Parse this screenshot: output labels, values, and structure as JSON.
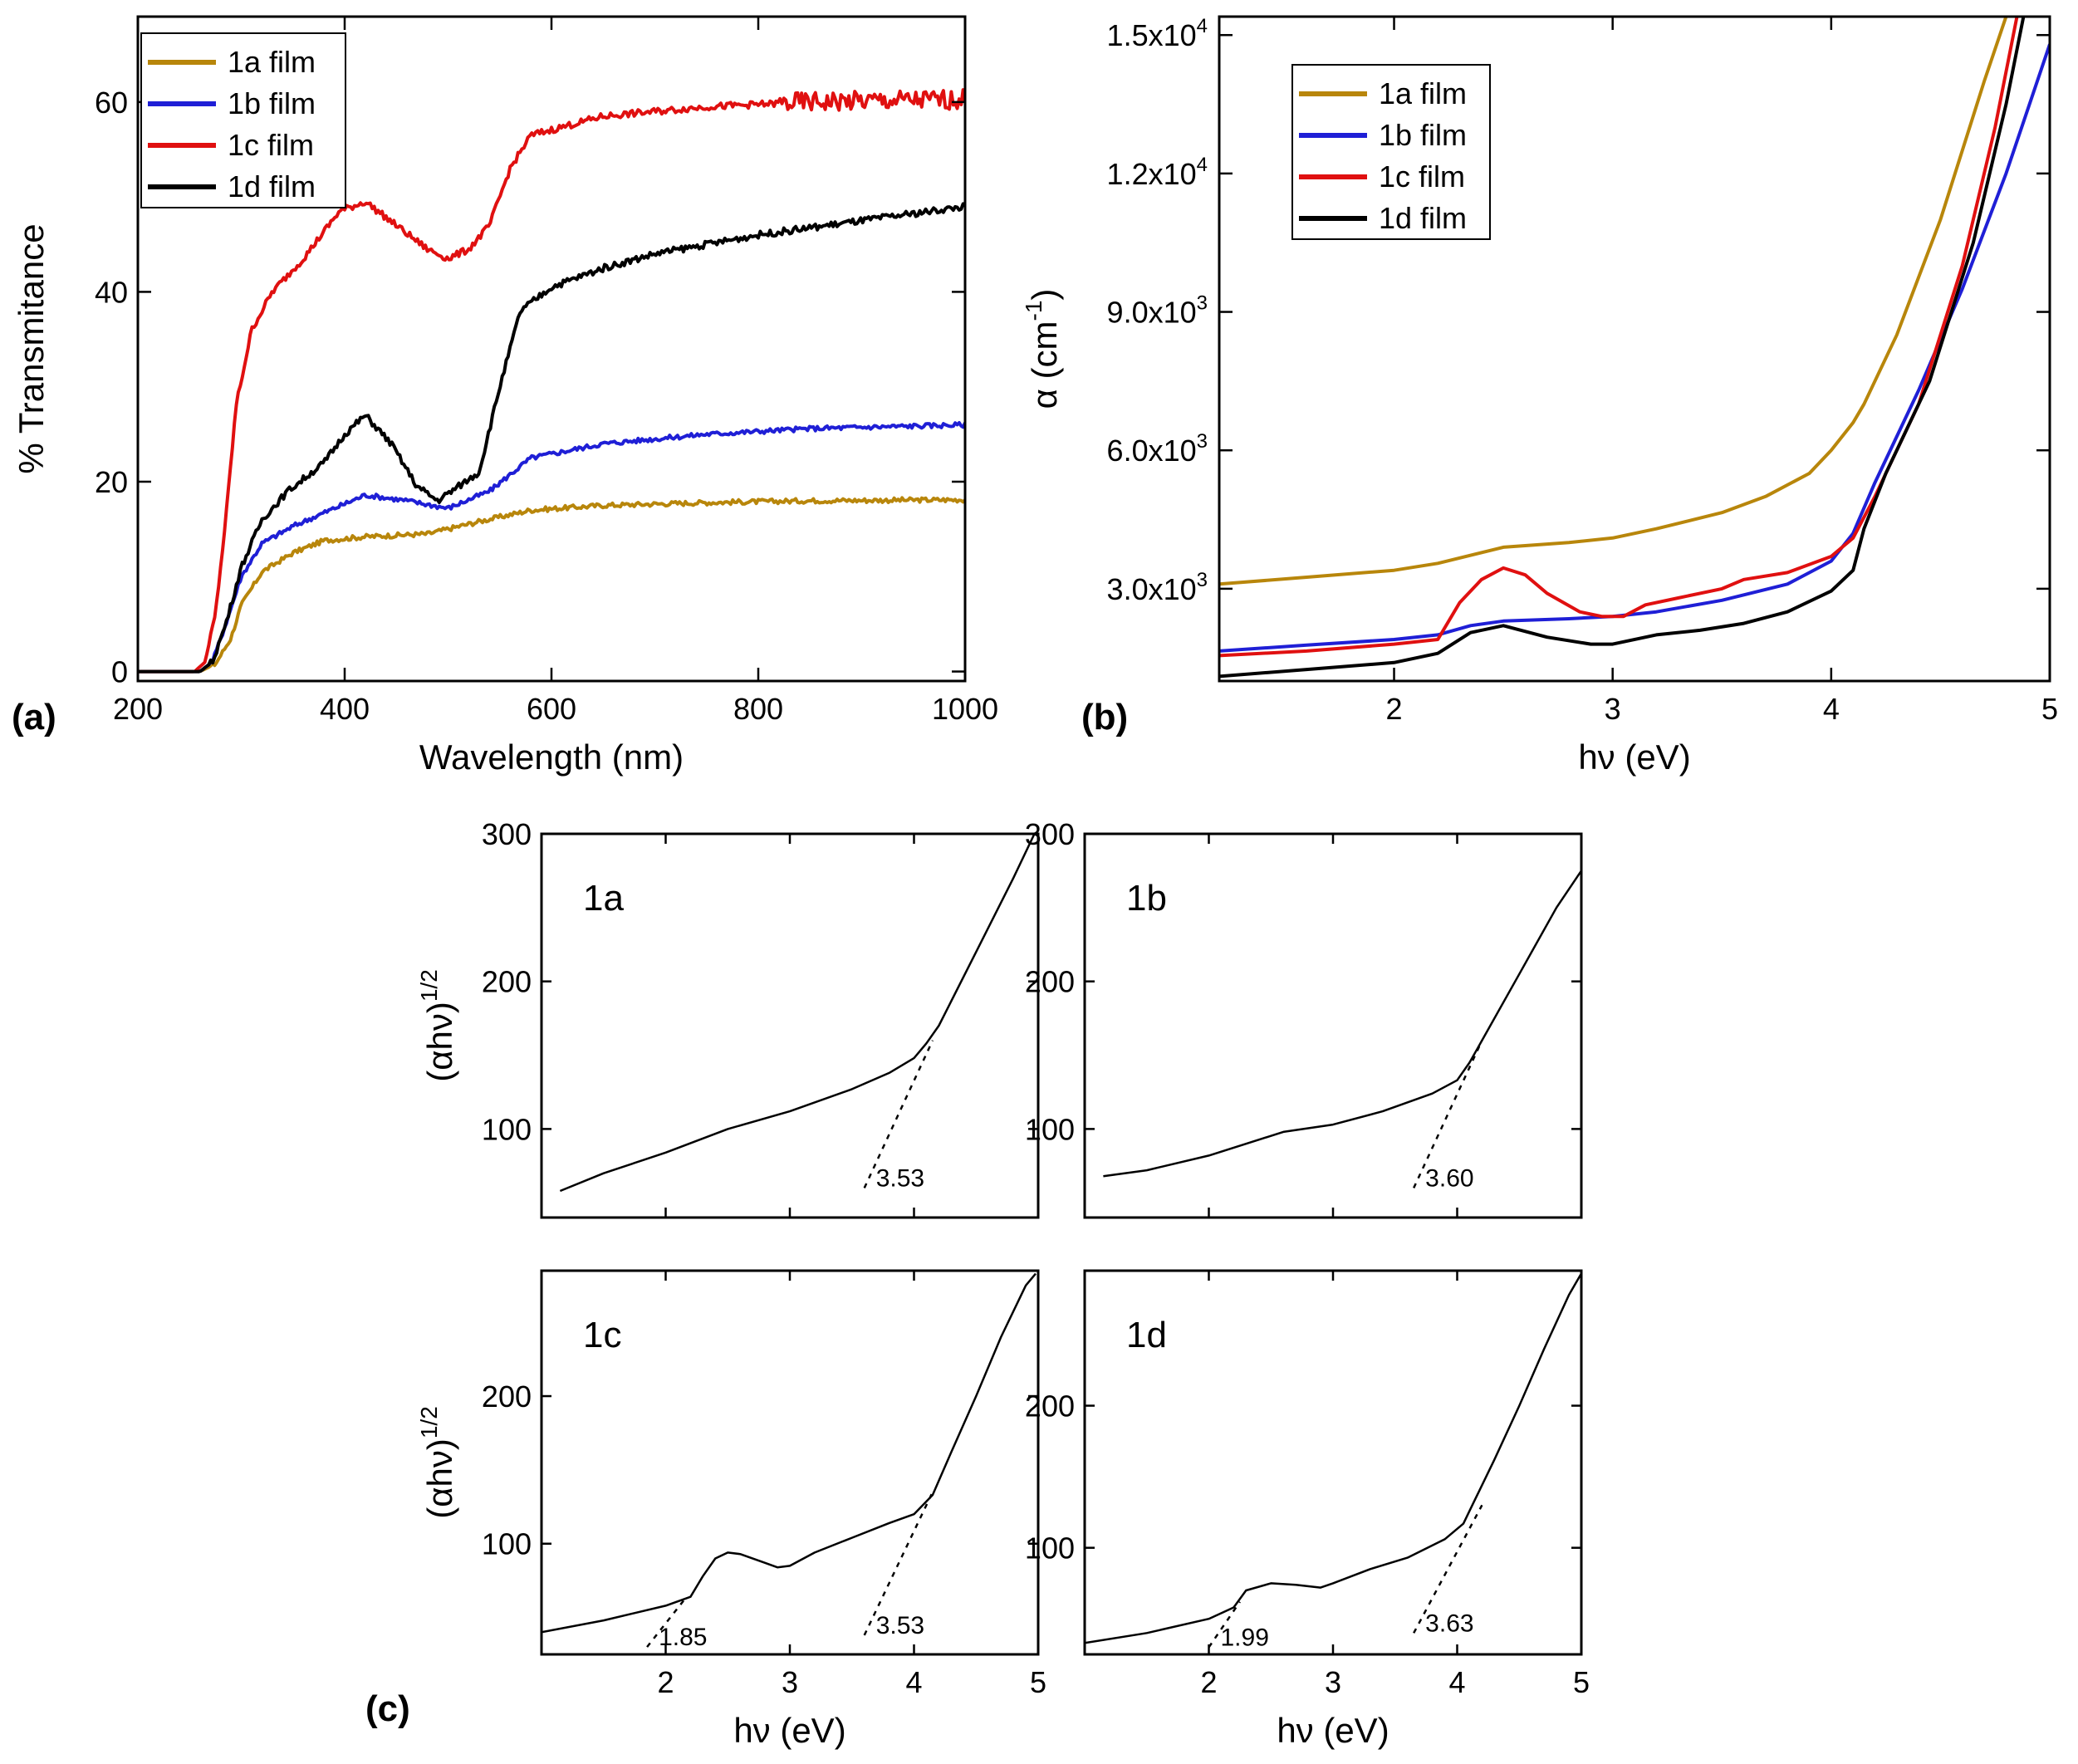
{
  "figure": {
    "panel_labels": [
      "(a)",
      "(b)",
      "(c)"
    ]
  },
  "chart_data": [
    {
      "id": "a",
      "type": "line",
      "xlabel": "Wavelength (nm)",
      "ylabel": "% Transmitance",
      "xlim": [
        200,
        1000
      ],
      "ylim": [
        -1,
        69
      ],
      "xticks": [
        200,
        400,
        600,
        800,
        1000
      ],
      "yticks": [
        0,
        20,
        40,
        60
      ],
      "legend_position": "top-left",
      "series": [
        {
          "name": "1a film",
          "color": "#b8860b",
          "noise": 0.25,
          "x": [
            200,
            260,
            275,
            290,
            300,
            320,
            350,
            380,
            420,
            480,
            530,
            580,
            650,
            750,
            850,
            1000
          ],
          "y": [
            0,
            0,
            0.8,
            3.5,
            7,
            10.5,
            12.5,
            13.8,
            14.2,
            14.5,
            15.8,
            17,
            17.5,
            17.8,
            18,
            18.1
          ]
        },
        {
          "name": "1b film",
          "color": "#1f1fd6",
          "noise": 0.25,
          "x": [
            200,
            260,
            272,
            285,
            300,
            320,
            350,
            390,
            420,
            460,
            500,
            540,
            580,
            650,
            750,
            850,
            1000
          ],
          "y": [
            0,
            0,
            1,
            5,
            10,
            13.5,
            15.3,
            17.2,
            18.6,
            18,
            17.2,
            19,
            22.5,
            24,
            25,
            25.6,
            26
          ]
        },
        {
          "name": "1c film",
          "color": "#e01010",
          "noise": 0.35,
          "x": [
            200,
            255,
            265,
            275,
            285,
            295,
            310,
            330,
            360,
            395,
            420,
            450,
            480,
            500,
            520,
            540,
            560,
            580,
            650,
            750,
            850,
            1000
          ],
          "y": [
            0,
            0,
            1,
            6,
            16,
            28,
            36,
            40,
            43.5,
            48.5,
            49.5,
            47,
            44.5,
            43.5,
            44.5,
            47,
            53,
            56.5,
            58.5,
            59.5,
            60,
            60.3
          ]
        },
        {
          "name": "1d film",
          "color": "#000000",
          "noise": 0.35,
          "x": [
            200,
            260,
            272,
            285,
            300,
            320,
            345,
            380,
            400,
            420,
            445,
            470,
            490,
            510,
            530,
            550,
            570,
            600,
            650,
            700,
            800,
            900,
            1000
          ],
          "y": [
            0,
            0,
            1,
            5,
            11,
            16,
            19,
            22,
            25,
            27,
            24,
            19.5,
            18,
            19.5,
            21,
            30,
            38,
            40.5,
            42.5,
            44,
            46,
            47.5,
            49
          ]
        }
      ]
    },
    {
      "id": "b",
      "type": "line",
      "xlabel": "hν (eV)",
      "ylabel": "α (cm",
      "ylabel_sup": "-1",
      "ylabel_tail": ")",
      "xlim": [
        1.2,
        5
      ],
      "ylim": [
        1000,
        15400
      ],
      "xticks": [
        2,
        3,
        4,
        5
      ],
      "yticks": [
        3000,
        6000,
        9000,
        12000,
        15000
      ],
      "ytick_labels": [
        {
          "mant": "3.0x10",
          "exp": "3"
        },
        {
          "mant": "6.0x10",
          "exp": "3"
        },
        {
          "mant": "9.0x10",
          "exp": "3"
        },
        {
          "mant": "1.2x10",
          "exp": "4"
        },
        {
          "mant": "1.5x10",
          "exp": "4"
        }
      ],
      "legend_position": "top-left",
      "series": [
        {
          "name": "1a film",
          "color": "#b8860b",
          "x": [
            1.2,
            1.6,
            2.0,
            2.2,
            2.5,
            2.8,
            3.0,
            3.2,
            3.5,
            3.7,
            3.9,
            4.0,
            4.1,
            4.15,
            4.3,
            4.5,
            4.7,
            4.8
          ],
          "y": [
            3100,
            3250,
            3400,
            3550,
            3900,
            4000,
            4100,
            4300,
            4650,
            5000,
            5500,
            6000,
            6600,
            7000,
            8500,
            11000,
            14000,
            15400
          ]
        },
        {
          "name": "1b film",
          "color": "#1f1fd6",
          "x": [
            1.2,
            1.6,
            2.0,
            2.2,
            2.35,
            2.5,
            2.8,
            3.0,
            3.2,
            3.5,
            3.8,
            4.0,
            4.1,
            4.2,
            4.4,
            4.6,
            4.8,
            5.0
          ],
          "y": [
            1650,
            1780,
            1900,
            2000,
            2200,
            2300,
            2350,
            2400,
            2500,
            2750,
            3100,
            3600,
            4200,
            5300,
            7300,
            9500,
            12000,
            14800
          ]
        },
        {
          "name": "1c film",
          "color": "#e01010",
          "x": [
            1.2,
            1.6,
            2.0,
            2.2,
            2.3,
            2.4,
            2.5,
            2.6,
            2.7,
            2.85,
            2.95,
            3.05,
            3.15,
            3.3,
            3.5,
            3.6,
            3.8,
            4.0,
            4.1,
            4.2,
            4.4,
            4.6,
            4.75,
            4.85
          ],
          "y": [
            1550,
            1650,
            1800,
            1900,
            2700,
            3200,
            3450,
            3300,
            2900,
            2500,
            2400,
            2400,
            2650,
            2800,
            3000,
            3200,
            3350,
            3700,
            4100,
            5000,
            7000,
            10000,
            13000,
            15400
          ]
        },
        {
          "name": "1d film",
          "color": "#000000",
          "x": [
            1.2,
            1.6,
            2.0,
            2.2,
            2.35,
            2.5,
            2.7,
            2.9,
            3.0,
            3.2,
            3.4,
            3.6,
            3.8,
            4.0,
            4.1,
            4.15,
            4.25,
            4.45,
            4.65,
            4.8,
            4.88
          ],
          "y": [
            1100,
            1250,
            1400,
            1600,
            2050,
            2200,
            1950,
            1800,
            1800,
            2000,
            2100,
            2250,
            2500,
            2950,
            3400,
            4300,
            5500,
            7500,
            10500,
            13500,
            15400
          ]
        }
      ]
    },
    {
      "id": "c-1a",
      "type": "line",
      "panel_label": "1a",
      "xlim": [
        1.0,
        5.0
      ],
      "ylim": [
        40,
        300
      ],
      "yticks": [
        100,
        200,
        300
      ],
      "xticks": [
        2,
        3,
        4,
        5
      ],
      "show_xtick_labels": false,
      "show_ylabel": true,
      "ylabel": "(αhν)",
      "ylabel_sup": "1/2",
      "band_gaps": [
        {
          "value": "3.53",
          "from": [
            3.6,
            60
          ],
          "to": [
            4.15,
            160
          ]
        }
      ],
      "series": [
        {
          "name": "1a",
          "color": "#000000",
          "x": [
            1.15,
            1.5,
            2.0,
            2.5,
            3.0,
            3.5,
            3.8,
            4.0,
            4.1,
            4.2,
            4.5,
            4.8,
            4.97
          ],
          "y": [
            58,
            70,
            84,
            100,
            112,
            127,
            138,
            148,
            158,
            170,
            220,
            270,
            300
          ]
        }
      ]
    },
    {
      "id": "c-1b",
      "type": "line",
      "panel_label": "1b",
      "xlim": [
        1.0,
        5.0
      ],
      "ylim": [
        40,
        300
      ],
      "yticks": [
        100,
        200,
        300
      ],
      "xticks": [
        2,
        3,
        4,
        5
      ],
      "show_xtick_labels": false,
      "show_ylabel": false,
      "band_gaps": [
        {
          "value": "3.60",
          "from": [
            3.65,
            60
          ],
          "to": [
            4.2,
            160
          ]
        }
      ],
      "series": [
        {
          "name": "1b",
          "color": "#000000",
          "x": [
            1.15,
            1.5,
            2.0,
            2.3,
            2.6,
            3.0,
            3.4,
            3.8,
            4.0,
            4.1,
            4.2,
            4.5,
            4.8,
            5.0
          ],
          "y": [
            68,
            72,
            82,
            90,
            98,
            103,
            112,
            124,
            133,
            145,
            160,
            205,
            250,
            275
          ]
        }
      ]
    },
    {
      "id": "c-1c",
      "type": "line",
      "panel_label": "1c",
      "xlim": [
        1.0,
        5.0
      ],
      "ylim": [
        25,
        285
      ],
      "yticks": [
        100,
        200,
        300
      ],
      "xticks": [
        2,
        3,
        4,
        5
      ],
      "show_xtick_labels": true,
      "show_ylabel": true,
      "ylabel": "(αhν)",
      "ylabel_sup": "1/2",
      "xlabel": "hν (eV)",
      "band_gaps": [
        {
          "value": "1.85",
          "from": [
            1.85,
            30
          ],
          "to": [
            2.15,
            62
          ]
        },
        {
          "value": "3.53",
          "from": [
            3.6,
            38
          ],
          "to": [
            4.15,
            135
          ]
        }
      ],
      "series": [
        {
          "name": "1c",
          "color": "#000000",
          "x": [
            1.0,
            1.5,
            2.0,
            2.2,
            2.3,
            2.4,
            2.5,
            2.6,
            2.8,
            2.9,
            3.0,
            3.2,
            3.5,
            3.8,
            4.0,
            4.15,
            4.3,
            4.5,
            4.7,
            4.9,
            4.98
          ],
          "y": [
            40,
            48,
            58,
            64,
            78,
            90,
            94,
            93,
            87,
            84,
            85,
            94,
            104,
            114,
            120,
            133,
            162,
            200,
            240,
            275,
            283
          ]
        }
      ]
    },
    {
      "id": "c-1d",
      "type": "line",
      "panel_label": "1d",
      "xlim": [
        1.0,
        5.0
      ],
      "ylim": [
        25,
        295
      ],
      "yticks": [
        100,
        200,
        300
      ],
      "xticks": [
        2,
        3,
        4,
        5
      ],
      "show_xtick_labels": true,
      "show_ylabel": false,
      "xlabel": "hν (eV)",
      "band_gaps": [
        {
          "value": "1.99",
          "from": [
            2.0,
            30
          ],
          "to": [
            2.25,
            62
          ]
        },
        {
          "value": "3.63",
          "from": [
            3.65,
            40
          ],
          "to": [
            4.2,
            130
          ]
        }
      ],
      "series": [
        {
          "name": "1d",
          "color": "#000000",
          "x": [
            1.0,
            1.5,
            2.0,
            2.2,
            2.3,
            2.5,
            2.7,
            2.9,
            3.0,
            3.3,
            3.6,
            3.9,
            4.05,
            4.1,
            4.3,
            4.5,
            4.7,
            4.9,
            5.0
          ],
          "y": [
            33,
            40,
            50,
            58,
            70,
            75,
            74,
            72,
            75,
            85,
            93,
            106,
            117,
            126,
            162,
            200,
            240,
            278,
            293
          ]
        }
      ]
    }
  ]
}
